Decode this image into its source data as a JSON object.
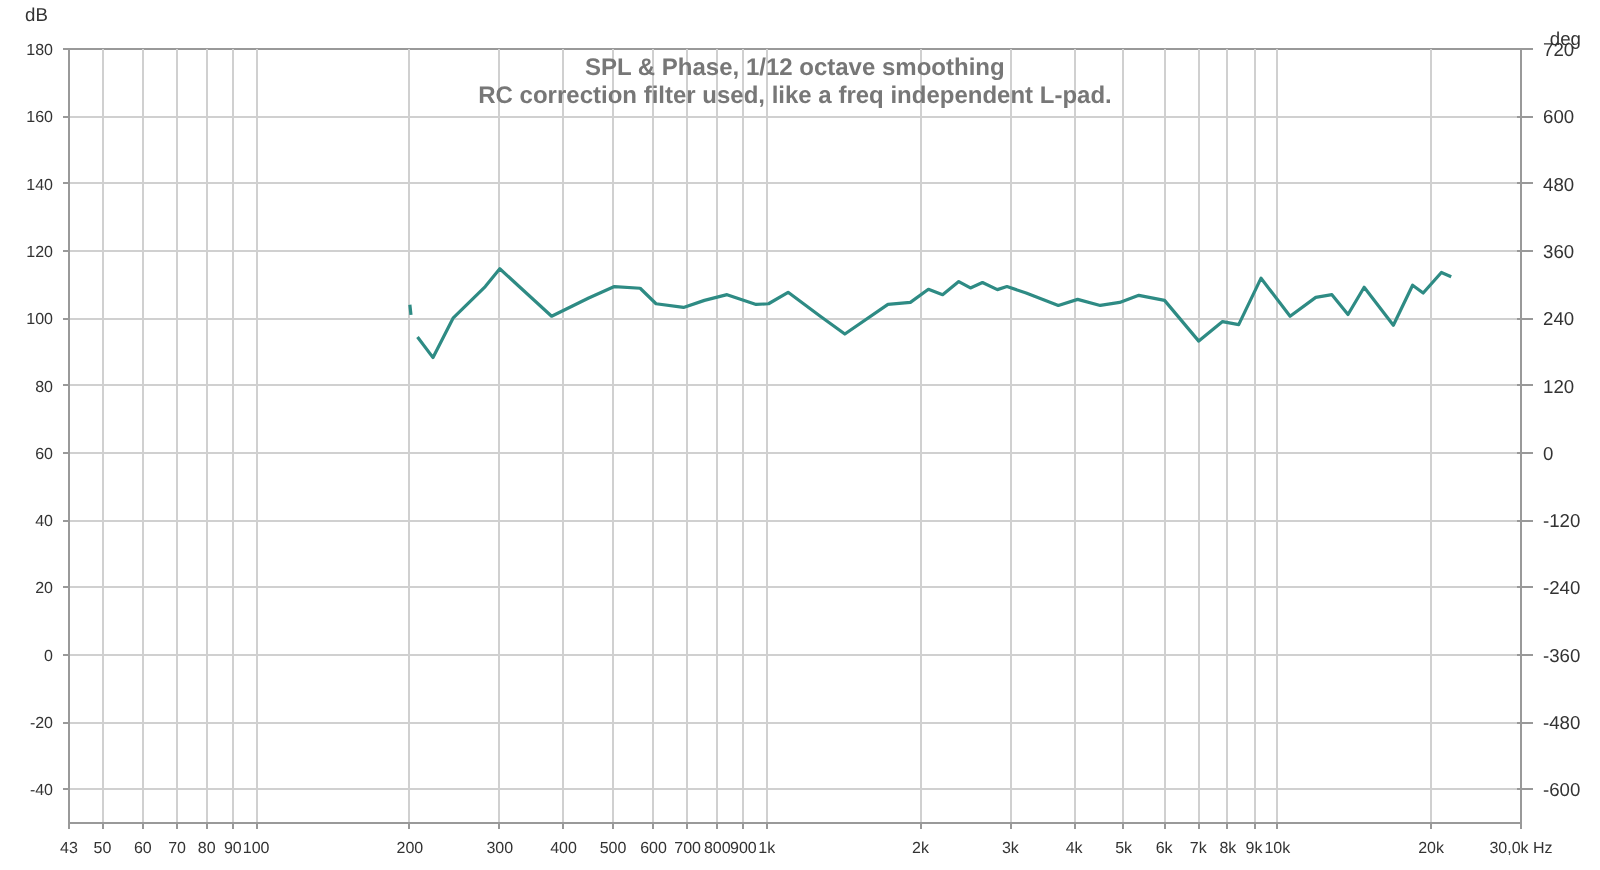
{
  "chart_data": {
    "type": "line",
    "title": "SPL & Phase, 1/12 octave smoothing",
    "subtitle": "RC correction filter used, like a freq independent L-pad.",
    "ylabel": "dB",
    "y2label": "deg",
    "log": "x",
    "grid": true,
    "marker": "none",
    "line_style": "solid",
    "xlim": [
      43,
      30000
    ],
    "xticks": [
      43,
      50,
      60,
      70,
      80,
      90,
      100,
      200,
      300,
      400,
      500,
      600,
      700,
      800,
      900,
      {
        "value": 1000,
        "label": "1k"
      },
      {
        "value": 2000,
        "label": "2k"
      },
      {
        "value": 3000,
        "label": "3k"
      },
      {
        "value": 4000,
        "label": "4k"
      },
      {
        "value": 5000,
        "label": "5k"
      },
      {
        "value": 6000,
        "label": "6k"
      },
      {
        "value": 7000,
        "label": "7k"
      },
      {
        "value": 8000,
        "label": "8k"
      },
      {
        "value": 9000,
        "label": "9k"
      },
      {
        "value": 10000,
        "label": "10k"
      },
      {
        "value": 20000,
        "label": "20k"
      },
      {
        "value": 30000,
        "label": "30,0k Hz"
      }
    ],
    "ylim": [
      -50,
      180
    ],
    "yticks": [
      -40,
      -20,
      0,
      20,
      40,
      60,
      80,
      100,
      120,
      140,
      160,
      180
    ],
    "y2lim": [
      -660,
      720
    ],
    "y2ticks": [
      -600,
      -480,
      -360,
      -240,
      -120,
      0,
      120,
      240,
      360,
      480,
      600,
      720
    ],
    "series": [
      {
        "color": "#2e8b84",
        "x": [
          200,
          201,
          202,
          207,
          222,
          243,
          281,
          300,
          379,
          448,
          503,
          565,
          607,
          687,
          755,
          836,
          953,
          1008,
          1101,
          1273,
          1422,
          1727,
          1911,
          2073,
          2210,
          2377,
          2505,
          2645,
          2829,
          2954,
          3221,
          3724,
          4063,
          4499,
          4910,
          5354,
          6012,
          7015,
          7810,
          8400,
          9290,
          10590,
          11890,
          12790,
          13750,
          14790,
          16870,
          18400,
          19300,
          20950,
          21900
        ],
        "values": [
          104,
          101,
          null,
          94.4,
          88.3,
          100,
          109.4,
          114.7,
          100.6,
          106,
          109.4,
          108.9,
          104.3,
          103.2,
          105.3,
          107,
          104.1,
          104.3,
          107.7,
          100.6,
          95.3,
          104.1,
          104.7,
          108.6,
          107,
          110.9,
          109,
          110.6,
          108.5,
          109.4,
          107.5,
          103.8,
          105.6,
          103.8,
          104.7,
          106.8,
          105.3,
          93.2,
          99,
          98.1,
          111.9,
          100.6,
          106.2,
          107,
          101.1,
          109.2,
          97.9,
          109.8,
          107.5,
          113.6,
          112.3
        ]
      }
    ]
  }
}
